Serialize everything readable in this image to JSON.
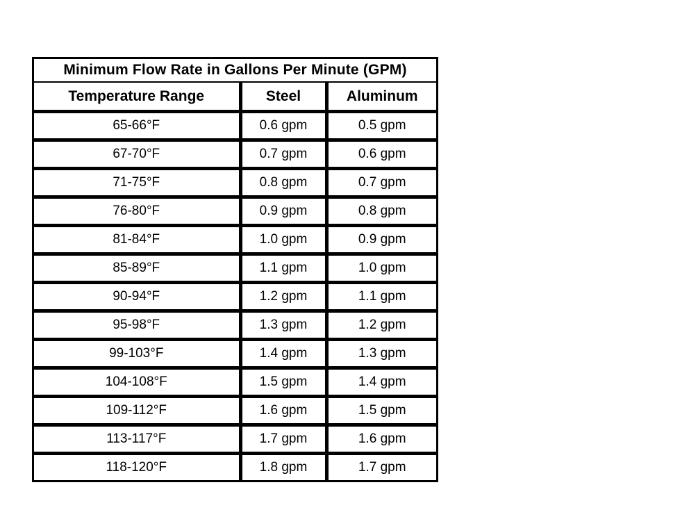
{
  "table": {
    "title": "Minimum Flow Rate in Gallons Per Minute (GPM)",
    "columns": [
      "Temperature Range",
      "Steel",
      "Aluminum"
    ],
    "rows": [
      [
        "65-66°F",
        "0.6 gpm",
        "0.5 gpm"
      ],
      [
        "67-70°F",
        "0.7 gpm",
        "0.6 gpm"
      ],
      [
        "71-75°F",
        "0.8 gpm",
        "0.7 gpm"
      ],
      [
        "76-80°F",
        "0.9 gpm",
        "0.8 gpm"
      ],
      [
        "81-84°F",
        "1.0 gpm",
        "0.9 gpm"
      ],
      [
        "85-89°F",
        "1.1 gpm",
        "1.0 gpm"
      ],
      [
        "90-94°F",
        "1.2 gpm",
        "1.1 gpm"
      ],
      [
        "95-98°F",
        "1.3 gpm",
        "1.2 gpm"
      ],
      [
        "99-103°F",
        "1.4 gpm",
        "1.3 gpm"
      ],
      [
        "104-108°F",
        "1.5 gpm",
        "1.4 gpm"
      ],
      [
        "109-112°F",
        "1.6 gpm",
        "1.5 gpm"
      ],
      [
        "113-117°F",
        "1.7 gpm",
        "1.6 gpm"
      ],
      [
        "118-120°F",
        "1.8 gpm",
        "1.7 gpm"
      ]
    ],
    "colors": {
      "border": "#000000",
      "background": "#ffffff",
      "text": "#000000"
    }
  }
}
